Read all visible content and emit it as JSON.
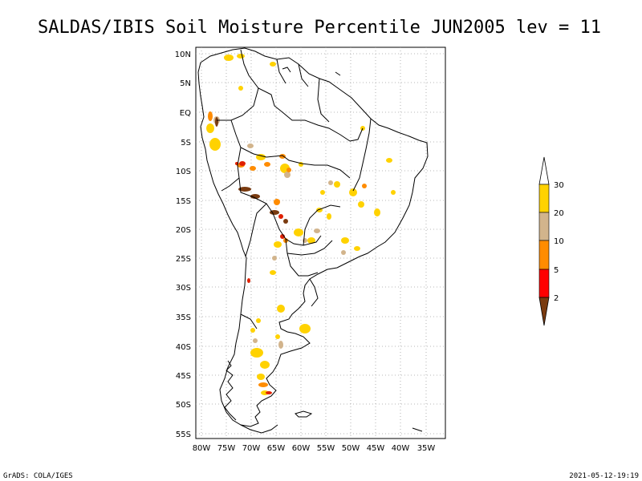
{
  "title": "SALDAS/IBIS Soil Moisture Percentile JUN2005 lev = 11",
  "footer_left": "GrADS: COLA/IGES",
  "footer_right": "2021-05-12-19:19",
  "lat_labels": [
    "10N",
    "5N",
    "EQ",
    "5S",
    "10S",
    "15S",
    "20S",
    "25S",
    "30S",
    "35S",
    "40S",
    "45S",
    "50S",
    "55S"
  ],
  "lon_labels": [
    "80W",
    "75W",
    "70W",
    "65W",
    "60W",
    "55W",
    "50W",
    "45W",
    "40W",
    "35W"
  ],
  "colorbar": {
    "labels": [
      "2",
      "5",
      "10",
      "20",
      "30"
    ],
    "colors": [
      "#7a3b10",
      "#ff0000",
      "#ff8c00",
      "#d2b48c",
      "#ffd200",
      "#ffffff"
    ]
  },
  "colors": {
    "coast": "#000000",
    "grid": "#a0a0a0",
    "very_dry": "#7a3b10",
    "dry": "#e02000",
    "moderate": "#ff8c00",
    "tan": "#d2b48c",
    "yellow": "#ffd200"
  }
}
